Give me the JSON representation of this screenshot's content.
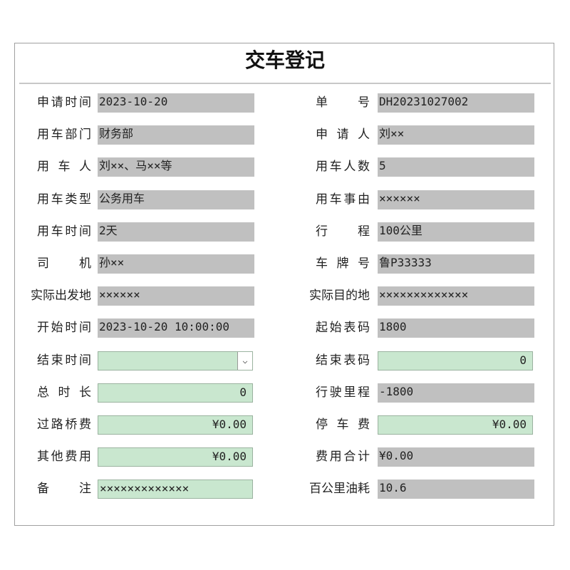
{
  "header": {
    "title": "交车登记"
  },
  "rows": [
    {
      "left": {
        "label": "申请时间",
        "value": "2023-10-20",
        "kind": "display"
      },
      "right": {
        "label": "单号",
        "value": "DH20231027002",
        "kind": "display"
      }
    },
    {
      "left": {
        "label": "用车部门",
        "value": "财务部",
        "kind": "display"
      },
      "right": {
        "label": "申请人",
        "value": "刘××",
        "kind": "display"
      }
    },
    {
      "left": {
        "label": "用车人",
        "value": "刘××、马××等",
        "kind": "display"
      },
      "right": {
        "label": "用车人数",
        "value": "5",
        "kind": "display"
      }
    },
    {
      "left": {
        "label": "用车类型",
        "value": "公务用车",
        "kind": "display"
      },
      "right": {
        "label": "用车事由",
        "value": "××××××",
        "kind": "display"
      }
    },
    {
      "left": {
        "label": "用车时间",
        "value": "2天",
        "kind": "display"
      },
      "right": {
        "label": "行程",
        "value": "100公里",
        "kind": "display"
      }
    },
    {
      "left": {
        "label": "司机",
        "value": "孙××",
        "kind": "display"
      },
      "right": {
        "label": "车牌号",
        "value": "鲁P33333",
        "kind": "display"
      }
    },
    {
      "left": {
        "label": "实际出发地",
        "value": "××××××",
        "kind": "display"
      },
      "right": {
        "label": "实际目的地",
        "value": "×××××××××××××",
        "kind": "display"
      }
    },
    {
      "left": {
        "label": "开始时间",
        "value": "2023-10-20 10:00:00",
        "kind": "display"
      },
      "right": {
        "label": "起始表码",
        "value": "1800",
        "kind": "display"
      }
    },
    {
      "left": {
        "label": "结束时间",
        "kind": "select"
      },
      "right": {
        "label": "结束表码",
        "value": "0",
        "kind": "input-right"
      }
    },
    {
      "left": {
        "label": "总时长",
        "value": "0",
        "kind": "input-right"
      },
      "right": {
        "label": "行驶里程",
        "value": "-1800",
        "kind": "display"
      }
    },
    {
      "left": {
        "label": "过路桥费",
        "value": "¥0.00",
        "kind": "input-right"
      },
      "right": {
        "label": "停车费",
        "value": "¥0.00",
        "kind": "input-right"
      }
    },
    {
      "left": {
        "label": "其他费用",
        "value": "¥0.00",
        "kind": "input-right"
      },
      "right": {
        "label": "费用合计",
        "value": "¥0.00",
        "kind": "display"
      }
    },
    {
      "left": {
        "label": "备注",
        "value": "×××××××××××××",
        "kind": "input-left"
      },
      "right": {
        "label": "百公里油耗",
        "value": "10.6",
        "kind": "display"
      }
    }
  ]
}
